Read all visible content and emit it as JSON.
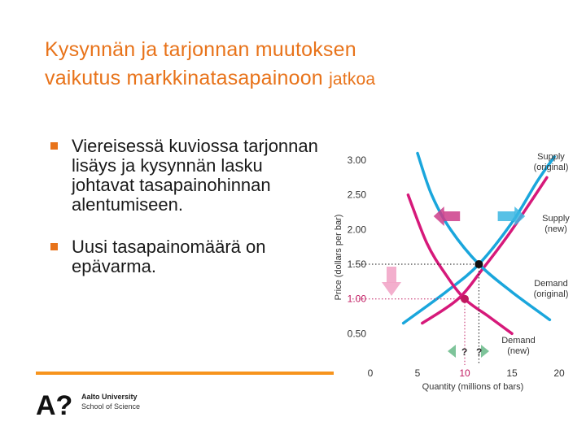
{
  "slide": {
    "title_line1": "Kysynnän ja tarjonnan muutoksen",
    "title_line2": "vaikutus markkinatasapainoon",
    "title_suffix": "jatkoa",
    "bullets": [
      "Viereisessä kuviossa tarjonnan lisäys ja kysynnän lasku johtavat tasapainohinnan alentumiseen.",
      "Uusi tasapainomäärä on epävarma."
    ]
  },
  "footer": {
    "logo_mark": "A?",
    "logo_line1": "Aalto University",
    "logo_line2": "School of Science",
    "colors": {
      "rule": "#f7941d",
      "logo": "#111111"
    }
  },
  "chart_data": {
    "type": "line",
    "xlabel": "Quantity (millions of bars)",
    "ylabel": "Price (dollars per bar)",
    "xlim": [
      0,
      20
    ],
    "ylim": [
      0,
      3.2
    ],
    "x_ticks": [
      "0",
      "5",
      "10",
      "15",
      "20"
    ],
    "y_ticks": [
      "0.50",
      "1.00",
      "1.50",
      "2.00",
      "2.50",
      "3.00"
    ],
    "series": [
      {
        "name": "Supply (original)",
        "color": "#1aa6dc",
        "points": [
          [
            3.5,
            0.65
          ],
          [
            8,
            1.1
          ],
          [
            11.5,
            1.5
          ],
          [
            15,
            2.1
          ],
          [
            17.7,
            2.7
          ],
          [
            19.5,
            3.05
          ]
        ]
      },
      {
        "name": "Supply (new)",
        "color": "#d6197a",
        "points": [
          [
            5.5,
            0.65
          ],
          [
            9.3,
            1.0
          ],
          [
            12,
            1.45
          ],
          [
            14.5,
            1.9
          ],
          [
            16.5,
            2.3
          ],
          [
            18.7,
            2.75
          ]
        ]
      },
      {
        "name": "Demand (original)",
        "color": "#1aa6dc",
        "points": [
          [
            5,
            3.1
          ],
          [
            6.5,
            2.5
          ],
          [
            8.5,
            2.0
          ],
          [
            11.5,
            1.5
          ],
          [
            15,
            1.1
          ],
          [
            19,
            0.7
          ]
        ]
      },
      {
        "name": "Demand (new)",
        "color": "#d6197a",
        "points": [
          [
            4,
            2.5
          ],
          [
            6,
            1.8
          ],
          [
            8,
            1.35
          ],
          [
            10,
            1.0
          ],
          [
            12.5,
            0.75
          ],
          [
            15,
            0.5
          ]
        ]
      }
    ],
    "equilibria": [
      {
        "label": "original",
        "x": 11.5,
        "y": 1.5,
        "color": "#111111"
      },
      {
        "label": "new",
        "x": 10,
        "y": 1.0,
        "color": "#c0185f"
      }
    ],
    "annotations": {
      "supply_original": [
        "Supply",
        "(original)"
      ],
      "supply_new": [
        "Supply",
        "(new)"
      ],
      "demand_original": [
        "Demand",
        "(original)"
      ],
      "demand_new": [
        "Demand",
        "(new)"
      ],
      "question_marks": [
        "?",
        "?"
      ]
    },
    "accent_colors": {
      "highlight_tick": "#c0185f",
      "arrow_magenta": "#cc3d8a",
      "arrow_cyan": "#3bb6e2",
      "arrow_green": "#7ec49a",
      "arrow_pink": "#f2a6c8"
    }
  }
}
